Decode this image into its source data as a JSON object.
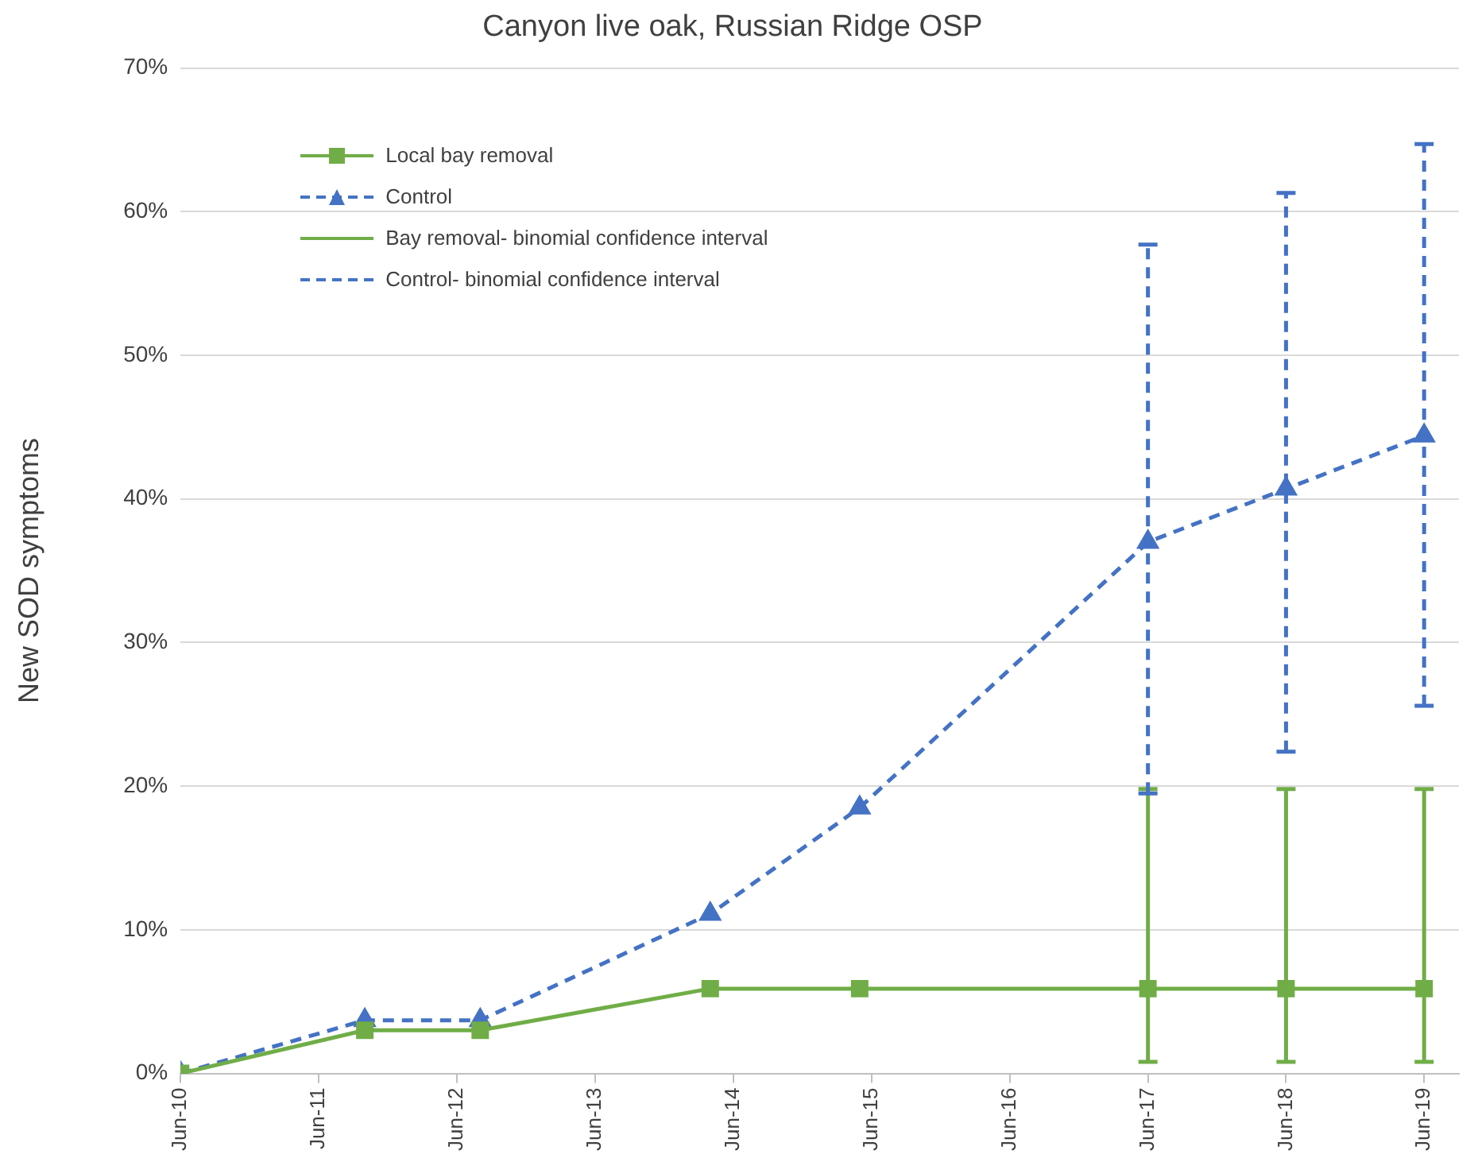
{
  "chart_data": {
    "type": "line",
    "title": "Canyon live oak, Russian Ridge OSP",
    "ylabel": "New SOD symptoms",
    "x": [
      "2010-06-01",
      "2011-10-01",
      "2012-08-01",
      "2014-04-01",
      "2015-05-01",
      "2017-06-01",
      "2018-06-01",
      "2019-06-01"
    ],
    "series": [
      {
        "name": "Local bay removal",
        "color": "#70ad47",
        "marker": "square",
        "line_style": "solid",
        "values": [
          0,
          3,
          3,
          5.9,
          5.9,
          5.9,
          5.9,
          5.9
        ],
        "errors": [
          null,
          null,
          null,
          null,
          null,
          [
            0.8,
            19.8
          ],
          [
            0.8,
            19.8
          ],
          [
            0.8,
            19.8
          ]
        ]
      },
      {
        "name": "Control",
        "color": "#4472c4",
        "marker": "triangle",
        "line_style": "dashed",
        "values": [
          0,
          3.7,
          3.7,
          11.1,
          18.5,
          37,
          40.7,
          44.4
        ],
        "errors": [
          null,
          null,
          null,
          null,
          null,
          [
            19.5,
            57.7
          ],
          [
            22.4,
            61.3
          ],
          [
            25.6,
            64.7
          ]
        ]
      },
      {
        "name": "Bay removal- binomial confidence interval",
        "color": "#70ad47",
        "line_style": "solid",
        "values": [
          null,
          null,
          null,
          null,
          null,
          null,
          null,
          null
        ]
      },
      {
        "name": "Control- binomial confidence interval",
        "color": "#4472c4",
        "line_style": "dashed",
        "values": [
          null,
          null,
          null,
          null,
          null,
          null,
          null,
          null
        ]
      }
    ],
    "xlim": [
      "2010-06-01",
      "2019-09-01"
    ],
    "xticks": [
      {
        "value": "2010-06-01",
        "label": "Jun-10"
      },
      {
        "value": "2011-06-01",
        "label": "Jun-11"
      },
      {
        "value": "2012-06-01",
        "label": "Jun-12"
      },
      {
        "value": "2013-06-01",
        "label": "Jun-13"
      },
      {
        "value": "2014-06-01",
        "label": "Jun-14"
      },
      {
        "value": "2015-06-01",
        "label": "Jun-15"
      },
      {
        "value": "2016-06-01",
        "label": "Jun-16"
      },
      {
        "value": "2017-06-01",
        "label": "Jun-17"
      },
      {
        "value": "2018-06-01",
        "label": "Jun-18"
      },
      {
        "value": "2019-06-01",
        "label": "Jun-19"
      }
    ],
    "ylim": [
      0,
      70
    ],
    "yticks": [
      {
        "value": 0,
        "label": "0%"
      },
      {
        "value": 10,
        "label": "10%"
      },
      {
        "value": 20,
        "label": "20%"
      },
      {
        "value": 30,
        "label": "30%"
      },
      {
        "value": 40,
        "label": "40%"
      },
      {
        "value": 50,
        "label": "50%"
      },
      {
        "value": 60,
        "label": "60%"
      },
      {
        "value": 70,
        "label": "70%"
      }
    ],
    "grid": "y",
    "legend": "top left"
  }
}
